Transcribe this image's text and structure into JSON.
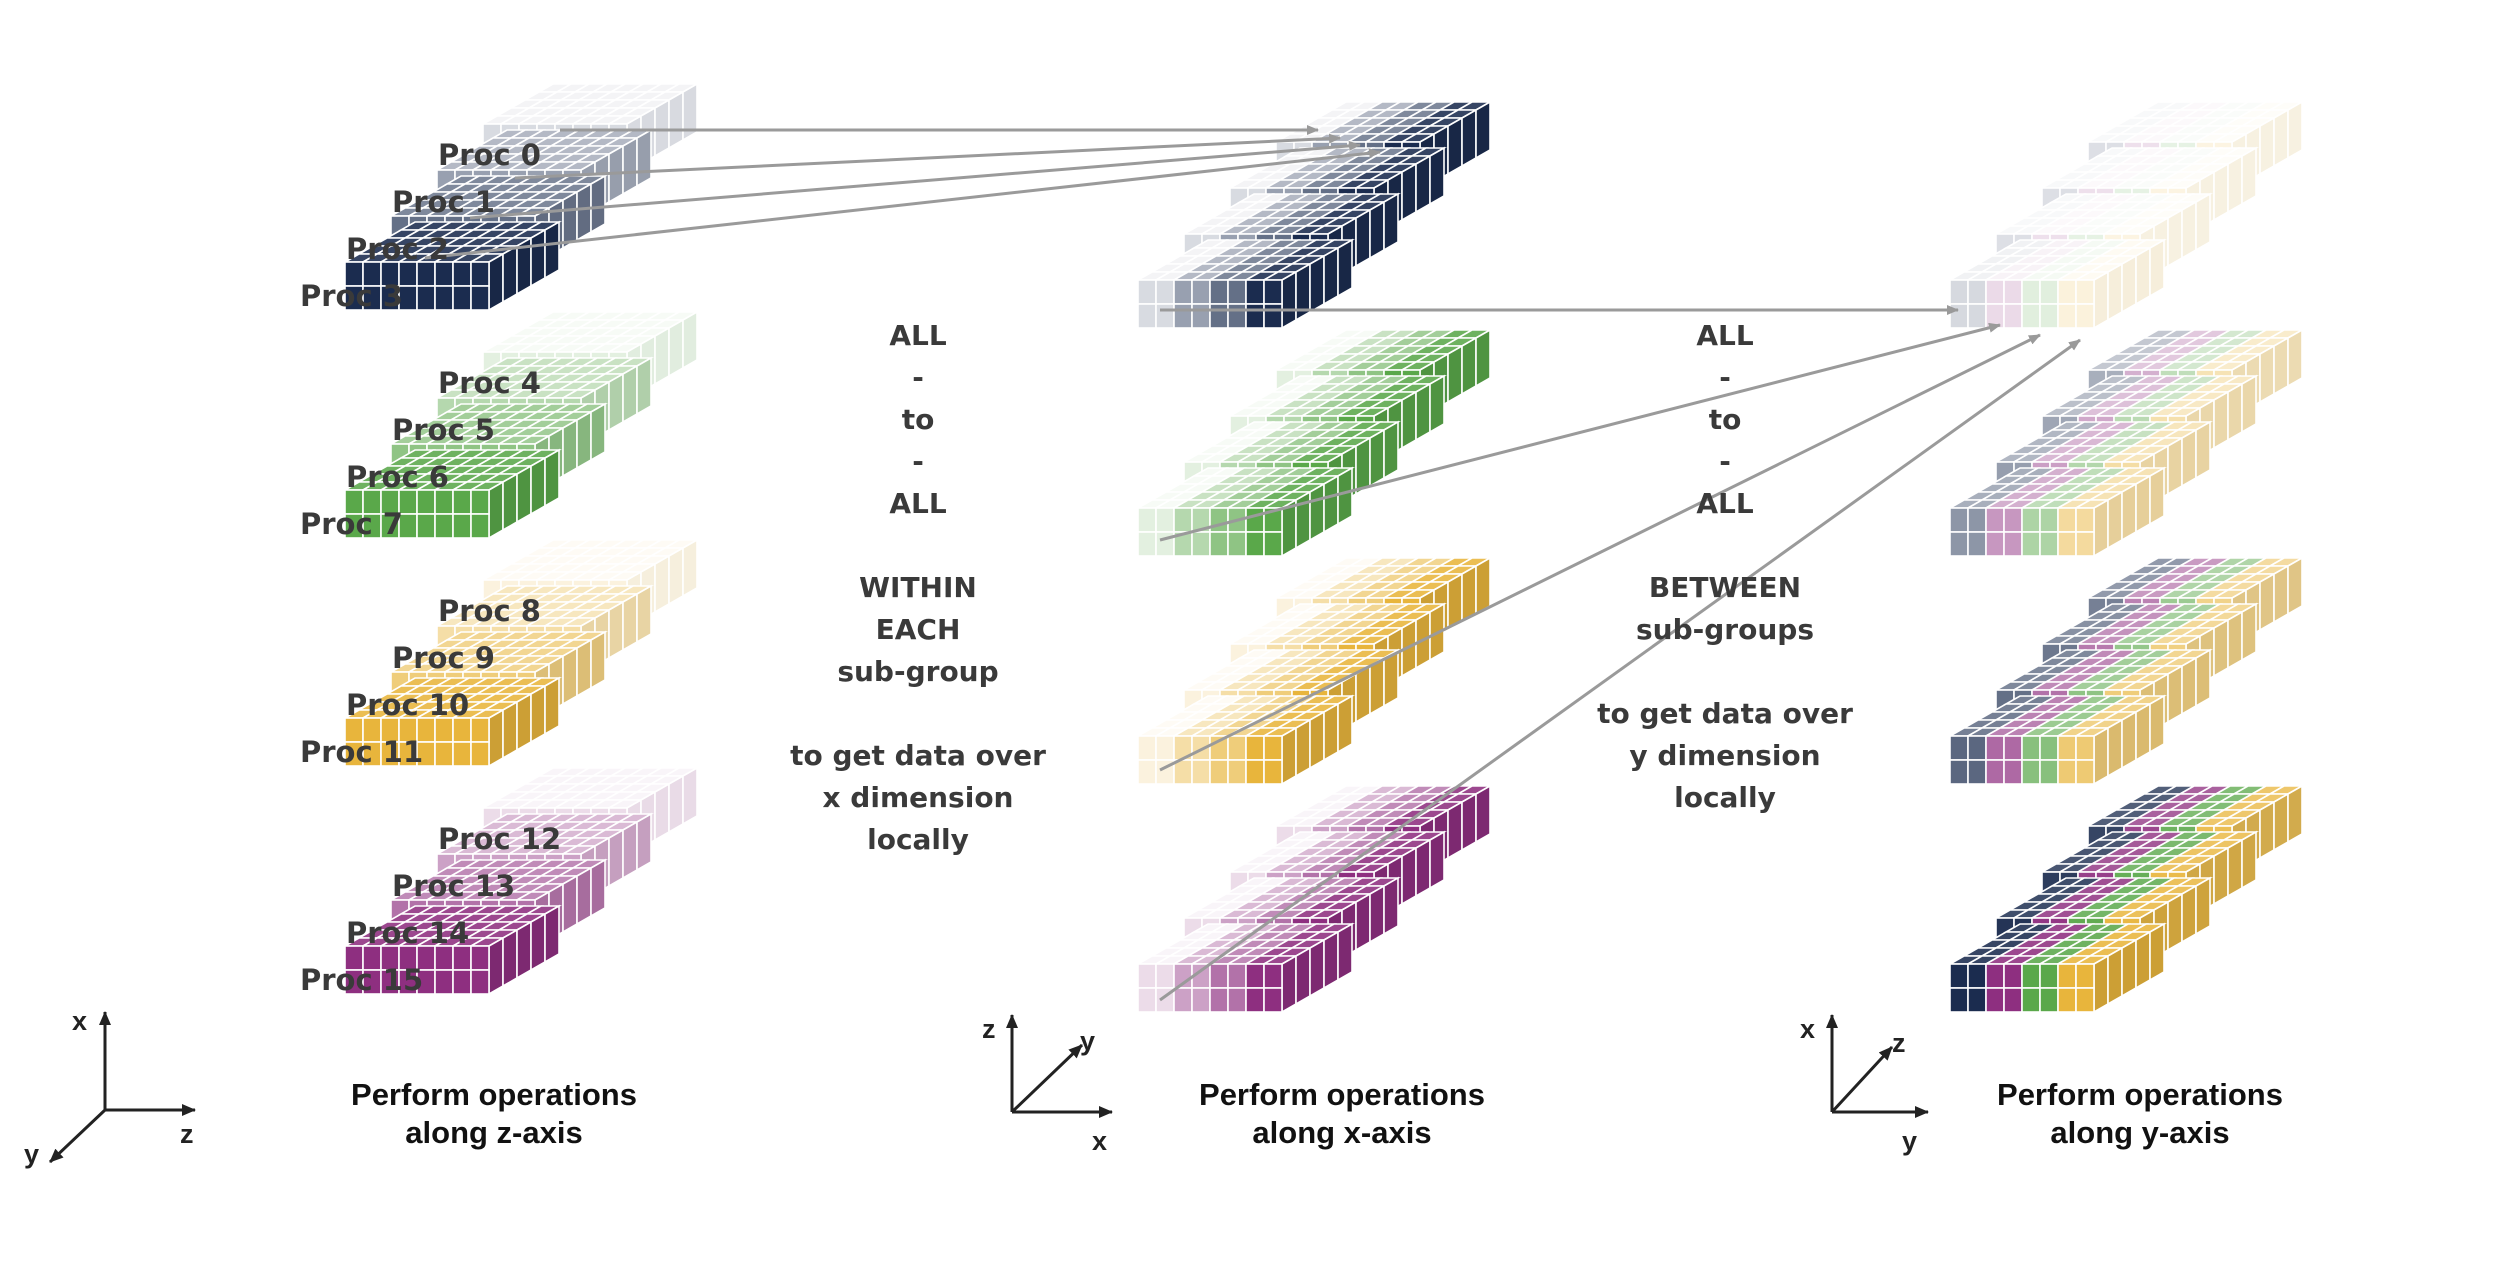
{
  "panels": [
    {
      "id": "z",
      "caption": [
        "Perform operations",
        "along z-axis"
      ],
      "axes": {
        "up": "x",
        "right": "z",
        "diag": "y"
      }
    },
    {
      "id": "x",
      "caption": [
        "Perform operations",
        "along x-axis"
      ],
      "axes": {
        "up": "z",
        "right": "x",
        "diag": "y"
      }
    },
    {
      "id": "y",
      "caption": [
        "Perform operations",
        "along y-axis"
      ],
      "axes": {
        "up": "x",
        "right": "y",
        "diag": "z"
      }
    }
  ],
  "processes": [
    "Proc 0",
    "Proc 1",
    "Proc 2",
    "Proc 3",
    "Proc 4",
    "Proc 5",
    "Proc 6",
    "Proc 7",
    "Proc 8",
    "Proc 9",
    "Proc 10",
    "Proc 11",
    "Proc 12",
    "Proc 13",
    "Proc 14",
    "Proc 15"
  ],
  "stage1_text": [
    "ALL",
    "-",
    "to",
    "-",
    "ALL",
    "",
    "WITHIN",
    "EACH",
    "sub-group",
    "",
    "to get data over",
    "x dimension",
    "locally"
  ],
  "stage2_text": [
    "ALL",
    "-",
    "to",
    "-",
    "ALL",
    "",
    "BETWEEN",
    "sub-groups",
    "",
    "to get data over",
    "y dimension",
    "locally"
  ],
  "colors": {
    "navy": "#1b2c4f",
    "green": "#5aa84a",
    "yellow": "#e8b53c",
    "purple": "#8e2f80",
    "arrow": "#9a9a9a",
    "label": "#3a3a3a"
  }
}
